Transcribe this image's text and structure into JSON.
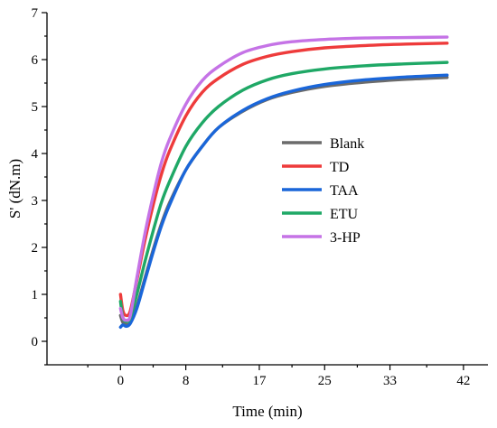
{
  "chart_data": {
    "type": "line",
    "title": "",
    "xlabel": "Time (min)",
    "ylabel": "S' (dN.m)",
    "xlim": [
      -9,
      45
    ],
    "ylim": [
      -0.5,
      7
    ],
    "xticks": [
      0,
      8,
      17,
      25,
      33,
      42
    ],
    "xtick_labels": [
      "0",
      "8",
      "17",
      "25",
      "33",
      "42"
    ],
    "yticks": [
      0,
      1,
      2,
      3,
      4,
      5,
      6,
      7
    ],
    "ytick_labels": [
      "0",
      "1",
      "2",
      "3",
      "4",
      "5",
      "6",
      "7"
    ],
    "grid": false,
    "legend_position": "center-right",
    "series": [
      {
        "name": "Blank",
        "color": "#6b6b6b",
        "x": [
          0,
          0.3,
          0.7,
          1.2,
          2,
          3,
          4,
          5,
          6,
          8,
          10,
          12,
          15,
          18,
          21,
          25,
          30,
          35,
          40
        ],
        "y": [
          0.55,
          0.4,
          0.36,
          0.4,
          0.75,
          1.35,
          1.95,
          2.5,
          2.95,
          3.65,
          4.15,
          4.55,
          4.9,
          5.15,
          5.3,
          5.43,
          5.52,
          5.58,
          5.62
        ]
      },
      {
        "name": "TD",
        "color": "#ee3b3b",
        "x": [
          0,
          0.3,
          0.7,
          1.2,
          2,
          3,
          4,
          5,
          6,
          8,
          10,
          12,
          15,
          18,
          21,
          25,
          30,
          35,
          40
        ],
        "y": [
          1.0,
          0.65,
          0.55,
          0.65,
          1.3,
          2.15,
          2.9,
          3.55,
          4.05,
          4.8,
          5.3,
          5.6,
          5.9,
          6.07,
          6.17,
          6.25,
          6.3,
          6.33,
          6.35
        ]
      },
      {
        "name": "TAA",
        "color": "#1a66d9",
        "x": [
          0,
          0.3,
          0.7,
          1.2,
          2,
          3,
          4,
          5,
          6,
          8,
          10,
          12,
          15,
          18,
          21,
          25,
          30,
          35,
          40
        ],
        "y": [
          0.3,
          0.35,
          0.32,
          0.38,
          0.7,
          1.3,
          1.9,
          2.45,
          2.9,
          3.65,
          4.15,
          4.55,
          4.92,
          5.17,
          5.33,
          5.47,
          5.57,
          5.63,
          5.67
        ]
      },
      {
        "name": "ETU",
        "color": "#1fa866",
        "x": [
          0,
          0.3,
          0.7,
          1.2,
          2,
          3,
          4,
          5,
          6,
          8,
          10,
          12,
          15,
          18,
          21,
          25,
          30,
          35,
          40
        ],
        "y": [
          0.85,
          0.5,
          0.42,
          0.5,
          1.0,
          1.7,
          2.35,
          2.95,
          3.4,
          4.15,
          4.65,
          5.0,
          5.35,
          5.57,
          5.7,
          5.8,
          5.87,
          5.91,
          5.94
        ]
      },
      {
        "name": "3-HP",
        "color": "#c573e6",
        "x": [
          0,
          0.3,
          0.7,
          1.2,
          2,
          3,
          4,
          5,
          6,
          8,
          10,
          12,
          15,
          18,
          21,
          25,
          30,
          35,
          40
        ],
        "y": [
          0.7,
          0.5,
          0.45,
          0.55,
          1.35,
          2.3,
          3.1,
          3.8,
          4.3,
          5.05,
          5.55,
          5.85,
          6.15,
          6.3,
          6.38,
          6.43,
          6.46,
          6.47,
          6.48
        ]
      }
    ]
  }
}
